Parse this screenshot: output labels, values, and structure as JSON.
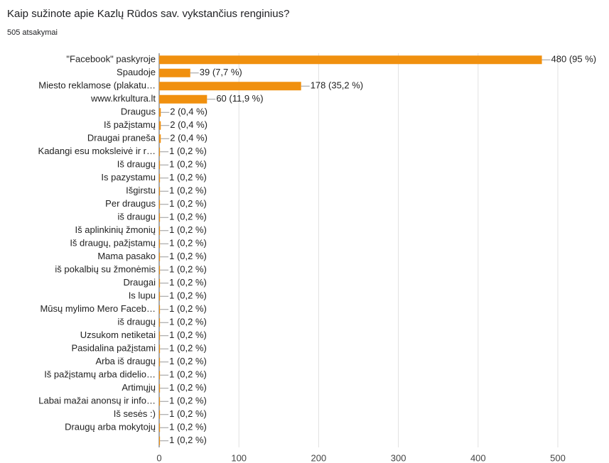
{
  "chart_data": {
    "type": "barh",
    "title": "Kaip sužinote apie Kazlų Rūdos sav. vykstančius renginius?",
    "subtitle": "505 atsakymai",
    "categories": [
      "\"Facebook\" paskyroje",
      "Spaudoje",
      "Miesto reklamose (plakatu…",
      "www.krkultura.lt",
      "Draugus",
      "Iš pažįstamų",
      "Draugai praneša",
      "Kadangi esu moksleivė ir r…",
      "Iš draugų",
      "Is pazystamu",
      "Išgirstu",
      "Per draugus",
      "iš draugu",
      "Iš aplinkinių žmonių",
      "Iš draugų, pažįstamų",
      "Mama pasako",
      "iš pokalbių su žmonėmis",
      "Draugai",
      "Is lupu",
      "Mūsų mylimo Mero Faceb…",
      "iš draugų",
      "Uzsukom netiketai",
      "Pasidalina pažįstami",
      "Arba iš draugų",
      "Iš pažįstamų arba didelio…",
      "Artimųjų",
      "Labai mažai anonsų ir info…",
      "Iš sesės :)",
      "Draugų arba mokytojų",
      null
    ],
    "values": [
      480,
      39,
      178,
      60,
      2,
      2,
      2,
      1,
      1,
      1,
      1,
      1,
      1,
      1,
      1,
      1,
      1,
      1,
      1,
      1,
      1,
      1,
      1,
      1,
      1,
      1,
      1,
      1,
      1,
      1
    ],
    "value_labels": [
      "480 (95 %)",
      "39 (7,7 %)",
      "178 (35,2 %)",
      "60 (11,9 %)",
      "2 (0,4 %)",
      "2 (0,4 %)",
      "2 (0,4 %)",
      "1 (0,2 %)",
      "1 (0,2 %)",
      "1 (0,2 %)",
      "1 (0,2 %)",
      "1 (0,2 %)",
      "1 (0,2 %)",
      "1 (0,2 %)",
      "1 (0,2 %)",
      "1 (0,2 %)",
      "1 (0,2 %)",
      "1 (0,2 %)",
      "1 (0,2 %)",
      "1 (0,2 %)",
      "1 (0,2 %)",
      "1 (0,2 %)",
      "1 (0,2 %)",
      "1 (0,2 %)",
      "1 (0,2 %)",
      "1 (0,2 %)",
      "1 (0,2 %)",
      "1 (0,2 %)",
      "1 (0,2 %)",
      "1 (0,2 %)"
    ],
    "color": "#f0900f",
    "xlim": [
      0,
      500
    ],
    "xticks": [
      0,
      100,
      200,
      300,
      400,
      500
    ],
    "grid": true
  }
}
